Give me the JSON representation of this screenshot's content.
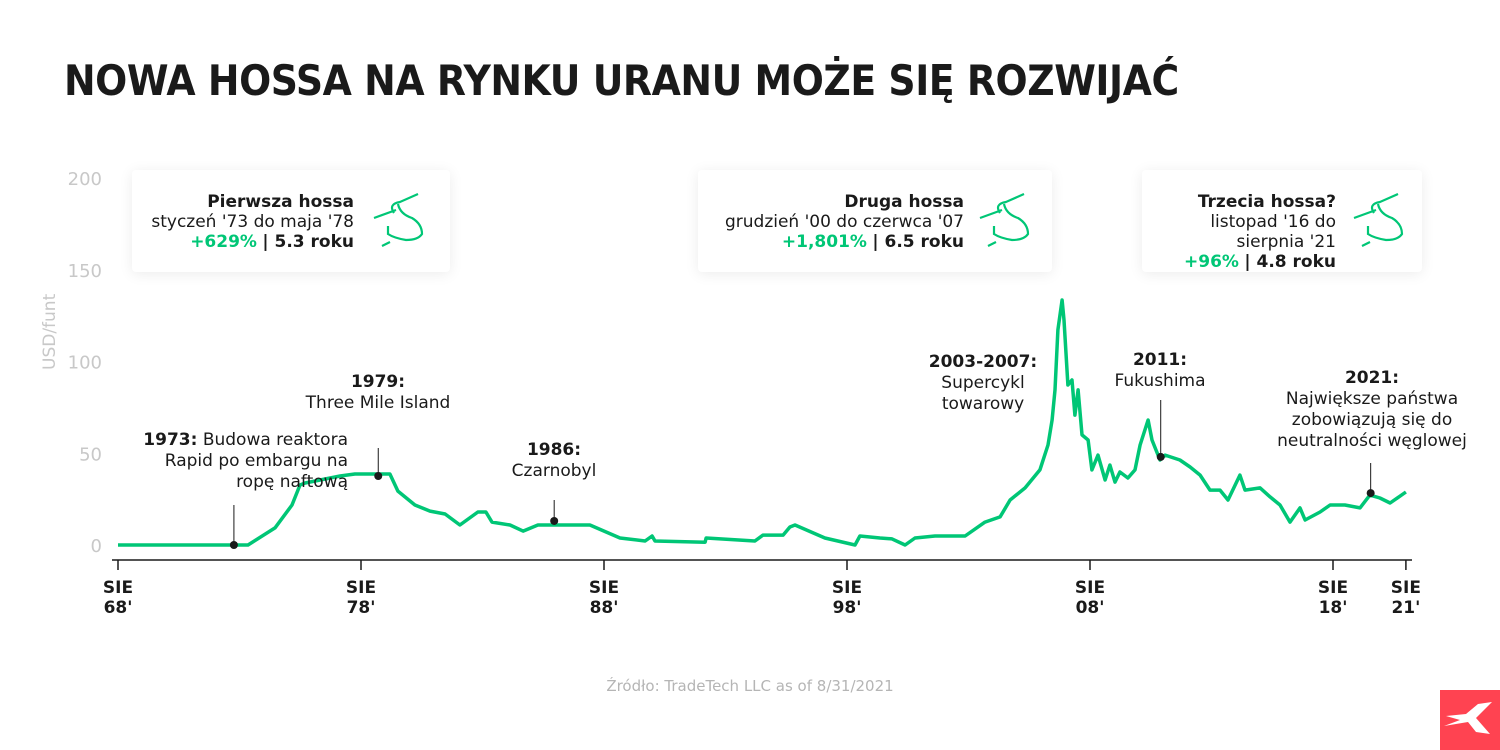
{
  "title": "NOWA HOSSA NA RYNKU URANU MOŻE SIĘ ROZWIJAĆ",
  "boxes": [
    {
      "title": "Pierwsza hossa",
      "period": "styczeń '73 do maja '78",
      "gain": "+629%",
      "duration": "| 5.3 roku",
      "icon": "bull-icon"
    },
    {
      "title": "Druga hossa",
      "period": "grudzień '00 do czerwca '07",
      "gain": "+1,801%",
      "duration": "| 6.5 roku",
      "icon": "bull-icon"
    },
    {
      "title": "Trzecia hossa?",
      "period": "listopad '16 do sierpnia '21",
      "gain": "+96%",
      "duration": "| 4.8 roku",
      "icon": "bull-icon"
    }
  ],
  "annotations": [
    {
      "year": "1973:",
      "text": "Budowa reaktora",
      "line2": "Rapid po embargu na",
      "line3": "ropę naftową"
    },
    {
      "year": "1979:",
      "text": "Three Mile Island"
    },
    {
      "year": "1986:",
      "text": "Czarnobyl"
    },
    {
      "year": "2003-2007:",
      "text": "Supercykl",
      "line2": "towarowy"
    },
    {
      "year": "2011:",
      "text": "Fukushima"
    },
    {
      "year": "2021:",
      "text": "Największe państwa",
      "line2": "zobowiązują się do",
      "line3": "neutralności węglowej"
    }
  ],
  "source": "Źródło: TradeTech LLC as of 8/31/2021",
  "colors": {
    "line": "#00c676",
    "accent": "#00c676",
    "logo": "#ff4351",
    "axis": "#1a1a1a",
    "ticklabels": "#c8c8c8"
  },
  "chart_data": {
    "type": "line",
    "title": "NOWA HOSSA NA RYNKU URANU MOŻE SIĘ ROZWIJAĆ",
    "ylabel": "USD/funt",
    "ylim": [
      0,
      200
    ],
    "yticks": [
      "0",
      "50",
      "100",
      "150",
      "200"
    ],
    "xticks": [
      {
        "year": 1968.58,
        "l1": "SIE",
        "l2": "68'"
      },
      {
        "year": 1978.58,
        "l1": "SIE",
        "l2": "78'"
      },
      {
        "year": 1988.58,
        "l1": "SIE",
        "l2": "88'"
      },
      {
        "year": 1998.58,
        "l1": "SIE",
        "l2": "98'"
      },
      {
        "year": 2008.58,
        "l1": "SIE",
        "l2": "08'"
      },
      {
        "year": 2018.58,
        "l1": "SIE",
        "l2": "18'"
      },
      {
        "year": 2021.58,
        "l1": "SIE",
        "l2": "21'"
      }
    ],
    "grid": false,
    "x": [
      1968.58,
      1973.93,
      1975.04,
      1975.74,
      1976.07,
      1976.28,
      1977.72,
      1978.33,
      1979.77,
      1980.1,
      1980.8,
      1981.42,
      1982.04,
      1982.65,
      1983.39,
      1983.72,
      1983.97,
      1984.71,
      1985.25,
      1985.86,
      1988.0,
      1989.24,
      1990.27,
      1990.56,
      1990.68,
      1992.74,
      1992.78,
      1994.79,
      1995.12,
      1995.95,
      1996.23,
      1996.44,
      1997.67,
      1998.91,
      1999.11,
      1999.94,
      2000.43,
      2000.97,
      2001.38,
      2002.2,
      2003.44,
      2004.26,
      2004.88,
      2005.29,
      2005.91,
      2006.52,
      2006.85,
      2007.02,
      2007.14,
      2007.26,
      2007.43,
      2007.51,
      2007.67,
      2007.84,
      2007.96,
      2008.09,
      2008.25,
      2008.5,
      2008.66,
      2008.91,
      2009.2,
      2009.4,
      2009.61,
      2009.81,
      2010.14,
      2010.43,
      2010.64,
      2010.97,
      2011.13,
      2011.46,
      2011.67,
      2012.28,
      2012.7,
      2013.11,
      2013.52,
      2013.93,
      2014.26,
      2014.75,
      2014.96,
      2015.58,
      2015.99,
      2016.4,
      2016.81,
      2017.22,
      2017.43,
      2018.05,
      2018.46,
      2019.07,
      2019.69,
      2020.1,
      2020.51,
      2020.93,
      2021.58
    ],
    "y": [
      0,
      0,
      9.3,
      21.8,
      32.7,
      33.8,
      37.6,
      38.7,
      38.7,
      29.4,
      21.8,
      18.5,
      16.9,
      10.9,
      18.0,
      18.0,
      12.5,
      10.9,
      7.6,
      10.9,
      10.9,
      3.8,
      2.2,
      4.9,
      2.2,
      1.5,
      3.8,
      2.2,
      5.4,
      5.4,
      9.8,
      10.9,
      3.8,
      0,
      4.9,
      3.8,
      3.3,
      0,
      3.8,
      4.9,
      4.9,
      12.5,
      15.3,
      24.5,
      31.1,
      40.9,
      54.5,
      68.1,
      84.5,
      117.2,
      133.5,
      122.6,
      87.2,
      89.9,
      70.8,
      84.5,
      60.0,
      57.2,
      40.9,
      49.0,
      35.4,
      43.6,
      34.3,
      39.8,
      36.5,
      40.9,
      54.5,
      68.1,
      57.2,
      46.3,
      49.0,
      46.3,
      42.5,
      38.1,
      29.9,
      29.9,
      24.5,
      38.1,
      29.9,
      31.1,
      26.2,
      21.8,
      12.5,
      20.2,
      13.6,
      18.0,
      21.8,
      21.8,
      20.2,
      27.2,
      25.6,
      22.9,
      28.9
    ],
    "markers": [
      {
        "year": 1973.35,
        "value": 0
      },
      {
        "year": 1979.29,
        "value": 37.6
      },
      {
        "year": 1986.53,
        "value": 13.1
      },
      {
        "year": 2011.49,
        "value": 48.0
      },
      {
        "year": 2020.13,
        "value": 28.3
      }
    ]
  }
}
